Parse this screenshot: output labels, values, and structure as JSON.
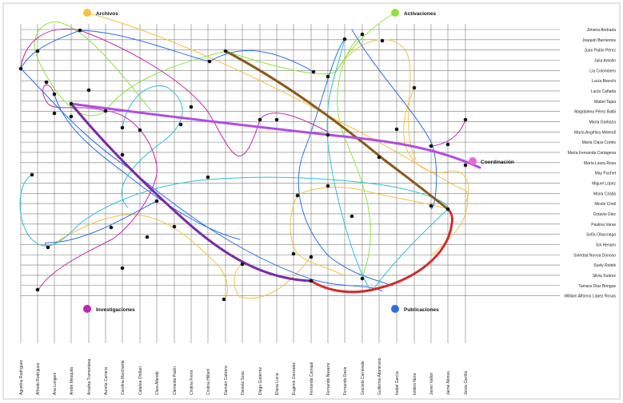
{
  "rows": [
    "Jimena Andrada",
    "Joaquín Barrientos",
    "Juan Pablo Pérez",
    "Julia Antolín",
    "Lía Colombero",
    "Lucía Bianchi",
    "Lucía Cañada",
    "Mabel Tapia",
    "Magdalena Pérez Balbi",
    "María Garbaza",
    "María Angélica Melendi",
    "María Clara Cortés",
    "María Fernanda Cartagena",
    "María Laura Rosa",
    "May Puchet",
    "Miguel López",
    "Moira Cristiá",
    "Nicole Cristi",
    "Octavio Diez",
    "Paulina Varas",
    "Sofía Olascoaga",
    "Sol Henaro",
    "Soledad Novoa Donoso",
    "Suely Rolnik",
    "Silvia Suárez",
    "Tamara Díaz Bringas",
    "William Alfonso López Rosas"
  ],
  "columns": [
    "Agustina Rodríguez",
    "Alfredo Rodríguez",
    "Ana Longoni",
    "André Mesquita",
    "Ariadna Tramontana",
    "Aurelia Carnera",
    "Carolina Marchante",
    "Catalina Orellan",
    "Clara Allende",
    "Clemente Padín",
    "Cristina Freire",
    "Cristina Hilbert",
    "Damián Cabrera",
    "Daniela Sosa",
    "Diego Gutiérrez",
    "Eliana Lucía",
    "Eugenio Gonzalez",
    "Fernanda Carvajal",
    "Fernando Nasarre",
    "Fernando Davis",
    "Graciela Carnevale",
    "Guillermo Altamirano",
    "Isabel García",
    "Isidoro Nora",
    "Javier Vallori",
    "Jaime Alonso",
    "Jesús Carrillo"
  ],
  "groups": {
    "archivos": "Archivos",
    "activaciones": "Activaciones",
    "coordinacion": "Coordinación",
    "investigaciones": "Investigaciones",
    "publicaciones": "Publicaciones"
  },
  "colors": {
    "archivos": "#f5c242",
    "activaciones": "#8ee53f",
    "coordinacion": "#ee6ad0",
    "investigaciones": "#c026b0",
    "publicaciones": "#2a6fe6",
    "cyan": "#2ec0d8",
    "blue": "#2a6fe6",
    "brown": "#8a5a1a",
    "red": "#d42a2a",
    "violet": "#7a2aa8",
    "purple_band": "#b04ee0",
    "grid": "#7a7a7a",
    "border": "#c8c8c8"
  }
}
